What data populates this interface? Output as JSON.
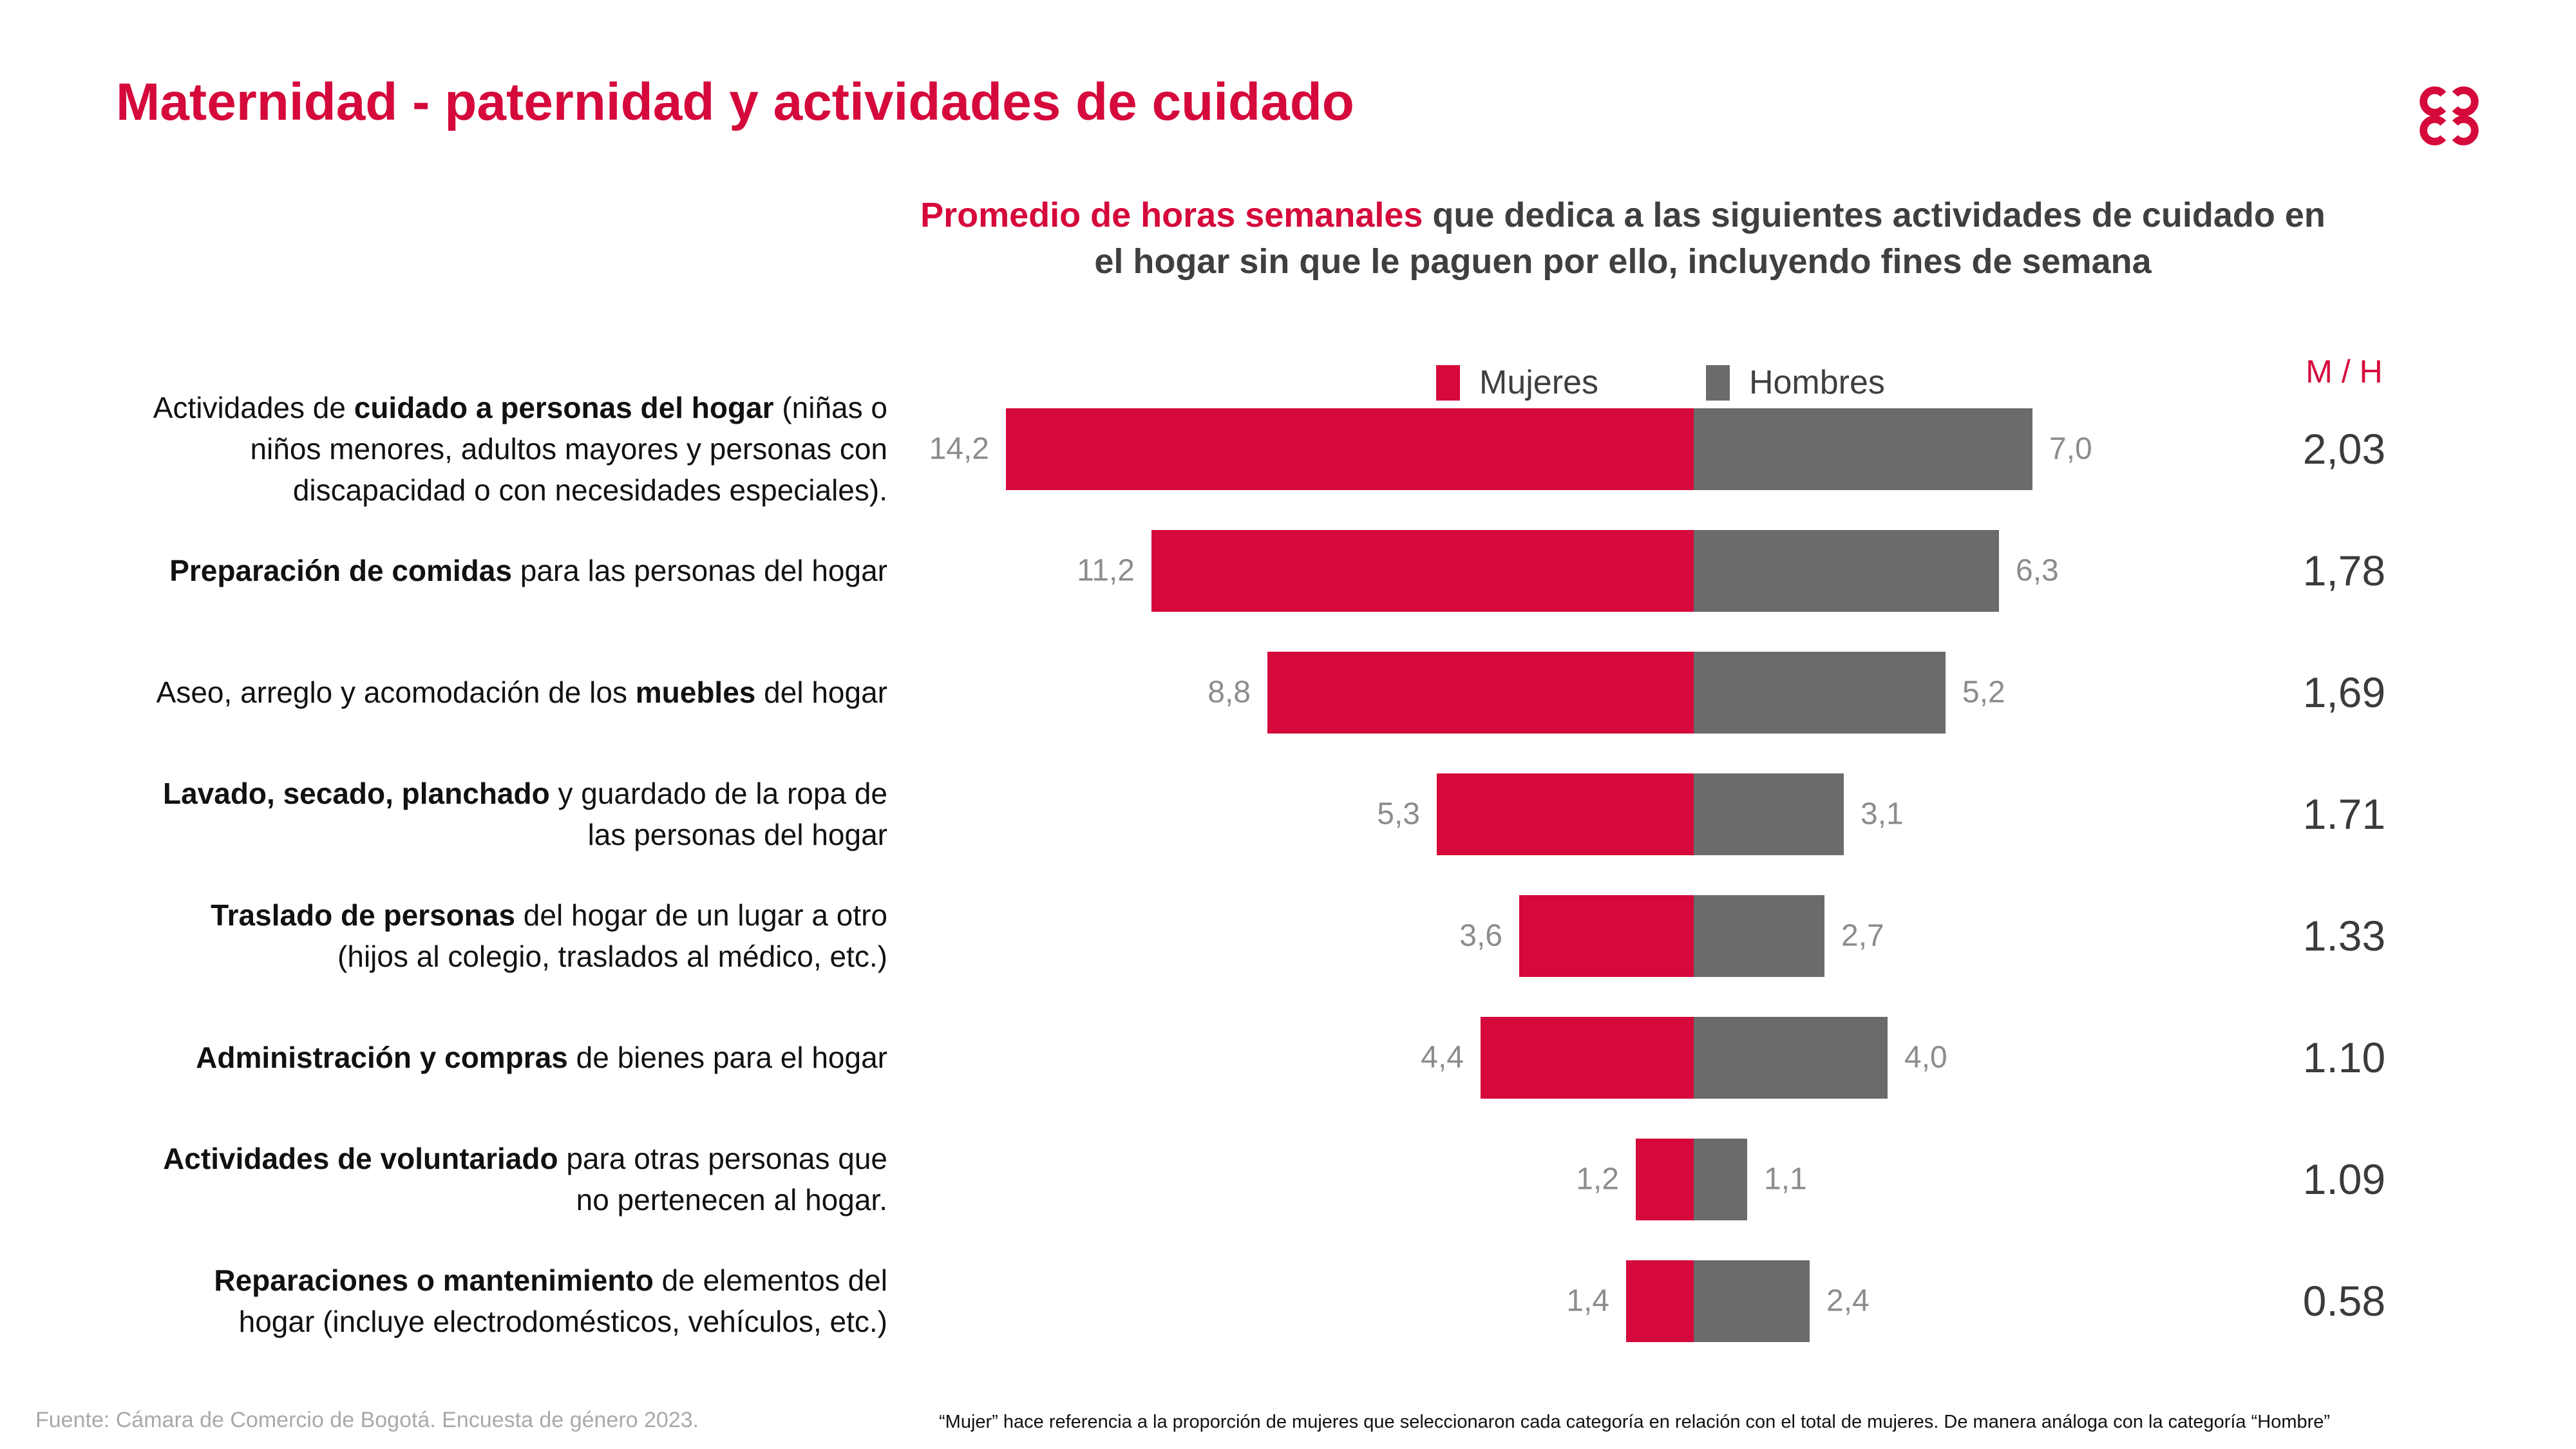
{
  "header": {
    "title": "Maternidad - paternidad y actividades de cuidado",
    "logo_icon": "ccb-four-c-logo"
  },
  "subtitle": {
    "highlight": "Promedio de horas semanales",
    "rest_line1": " que dedica a las siguientes actividades de cuidado en",
    "line2": "el hogar sin que le paguen por ello, incluyendo fines de semana"
  },
  "legend": {
    "mujeres": "Mujeres",
    "hombres": "Hombres",
    "ratio_header": "M / H"
  },
  "chart_data": {
    "type": "bar",
    "orientation": "horizontal-diverging",
    "unit": "horas semanales",
    "title": "Promedio de horas semanales que dedica a las siguientes actividades de cuidado en el hogar sin que le paguen por ello, incluyendo fines de semana",
    "legend_position": "top-center",
    "grid": false,
    "series": [
      {
        "name": "Mujeres",
        "color": "#D5093B"
      },
      {
        "name": "Hombres",
        "color": "#6B6B6B"
      }
    ],
    "rows": [
      {
        "label_lines": [
          [
            {
              "text": "Actividades de "
            },
            {
              "text": "cuidado a personas del hogar",
              "bold": true
            },
            {
              "text": " (niñas o"
            }
          ],
          [
            {
              "text": "niños menores, adultos mayores y personas con"
            }
          ],
          [
            {
              "text": "discapacidad o con necesidades especiales)."
            }
          ]
        ],
        "mujeres": 14.2,
        "mujeres_label": "14,2",
        "hombres": 7.0,
        "hombres_label": "7,0",
        "ratio_label": "2,03"
      },
      {
        "label_lines": [
          [
            {
              "text": "Preparación de comidas",
              "bold": true
            },
            {
              "text": " para las personas del hogar"
            }
          ]
        ],
        "mujeres": 11.2,
        "mujeres_label": "11,2",
        "hombres": 6.3,
        "hombres_label": "6,3",
        "ratio_label": "1,78"
      },
      {
        "label_lines": [
          [
            {
              "text": "Aseo, arreglo y acomodación de los "
            },
            {
              "text": "muebles",
              "bold": true
            },
            {
              "text": " del hogar"
            }
          ]
        ],
        "mujeres": 8.8,
        "mujeres_label": "8,8",
        "hombres": 5.2,
        "hombres_label": "5,2",
        "ratio_label": "1,69"
      },
      {
        "label_lines": [
          [
            {
              "text": "Lavado, secado, planchado",
              "bold": true
            },
            {
              "text": " y guardado de la ropa de"
            }
          ],
          [
            {
              "text": "las personas del hogar"
            }
          ]
        ],
        "mujeres": 5.3,
        "mujeres_label": "5,3",
        "hombres": 3.1,
        "hombres_label": "3,1",
        "ratio_label": "1.71"
      },
      {
        "label_lines": [
          [
            {
              "text": "Traslado de personas",
              "bold": true
            },
            {
              "text": " del hogar de un lugar a otro"
            }
          ],
          [
            {
              "text": "(hijos al colegio, traslados al médico, etc.)"
            }
          ]
        ],
        "mujeres": 3.6,
        "mujeres_label": "3,6",
        "hombres": 2.7,
        "hombres_label": "2,7",
        "ratio_label": "1.33"
      },
      {
        "label_lines": [
          [
            {
              "text": "Administración y compras",
              "bold": true
            },
            {
              "text": " de bienes para el hogar"
            }
          ]
        ],
        "mujeres": 4.4,
        "mujeres_label": "4,4",
        "hombres": 4.0,
        "hombres_label": "4,0",
        "ratio_label": "1.10"
      },
      {
        "label_lines": [
          [
            {
              "text": "Actividades de voluntariado",
              "bold": true
            },
            {
              "text": " para otras personas que"
            }
          ],
          [
            {
              "text": "no pertenecen al hogar."
            }
          ]
        ],
        "mujeres": 1.2,
        "mujeres_label": "1,2",
        "hombres": 1.1,
        "hombres_label": "1,1",
        "ratio_label": "1.09"
      },
      {
        "label_lines": [
          [
            {
              "text": "Reparaciones o mantenimiento",
              "bold": true
            },
            {
              "text": " de elementos del"
            }
          ],
          [
            {
              "text": "hogar (incluye electrodomésticos, vehículos, etc.)"
            }
          ]
        ],
        "mujeres": 1.4,
        "mujeres_label": "1,4",
        "hombres": 2.4,
        "hombres_label": "2,4",
        "ratio_label": "0.58"
      }
    ]
  },
  "footer": {
    "source": "Fuente: Cámara de Comercio de Bogotá. Encuesta de género 2023.",
    "note": "“Mujer” hace referencia a la proporción de mujeres que seleccionaron cada categoría en relación con el total de mujeres. De manera análoga con la categoría “Hombre”"
  },
  "colors": {
    "brand_red": "#D5093B",
    "bar_gray": "#6B6B6B",
    "value_label_gray": "#8C8C8C",
    "ratio_dark": "#3B3B3B",
    "subtitle_dark": "#3F3F3F",
    "source_gray": "#A9A9A9"
  }
}
